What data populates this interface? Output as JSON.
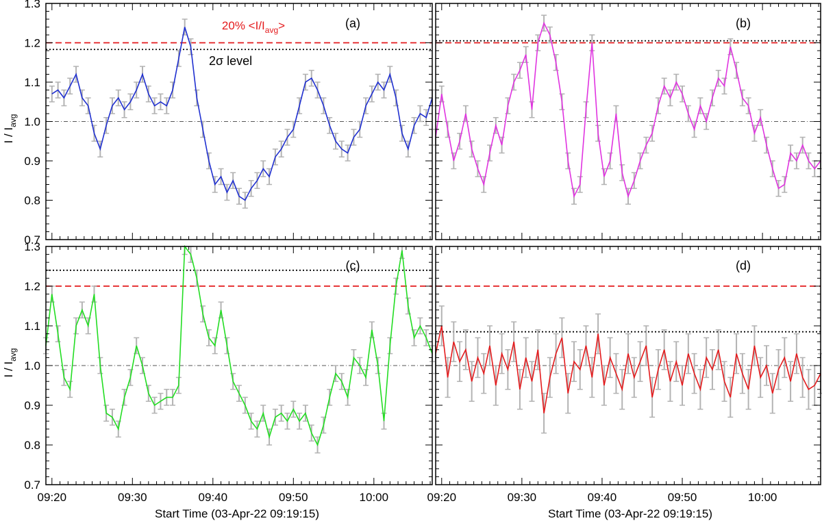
{
  "figure": {
    "shared_xlabel": "Start Time (03-Apr-22 09:19:15)",
    "ylabel_main": "I / I",
    "ylabel_sub": "avg",
    "colors": {
      "axis": "#000000",
      "errorbar": "#b3b3b3",
      "threshold": "#e41a1c",
      "sigma": "#000000",
      "mean": "#555555"
    }
  },
  "chart_data": [
    {
      "type": "line",
      "panel": "(a)",
      "title": "",
      "xlabel": "Start Time (03-Apr-22 09:19:15)",
      "ylabel": "I / Iavg",
      "xlim": [
        0,
        48
      ],
      "ylim": [
        0.7,
        1.3
      ],
      "color": "#1f2fd0",
      "error": 0.02,
      "threshold": 1.2,
      "sigma_level": 1.183,
      "annotations": {
        "threshold_label_prefix": "20% <I/I",
        "threshold_label_sub": "avg",
        "threshold_label_suffix": ">",
        "sigma_label": "2σ level"
      },
      "series": [
        {
          "name": "(a)",
          "x": [
            0.75,
            1.5,
            2.25,
            3,
            3.75,
            4.5,
            5.25,
            6,
            6.75,
            7.5,
            8.25,
            9,
            9.75,
            10.5,
            11.25,
            12,
            12.75,
            13.5,
            14.25,
            15,
            15.75,
            16.5,
            17.25,
            18,
            18.75,
            19.5,
            20.25,
            21,
            21.75,
            22.5,
            23.25,
            24,
            24.75,
            25.5,
            26.25,
            27,
            27.75,
            28.5,
            29.25,
            30,
            30.75,
            31.5,
            32.25,
            33,
            33.75,
            34.5,
            35.25,
            36,
            36.75,
            37.5,
            38.25,
            39,
            39.75,
            40.5,
            41.25,
            42,
            42.75,
            43.5,
            44.25,
            45,
            45.75,
            46.5,
            47.25,
            48
          ],
          "values": [
            1.07,
            1.08,
            1.06,
            1.09,
            1.12,
            1.06,
            1.04,
            0.97,
            0.93,
            0.99,
            1.04,
            1.06,
            1.03,
            1.05,
            1.08,
            1.12,
            1.07,
            1.04,
            1.05,
            1.04,
            1.08,
            1.16,
            1.24,
            1.19,
            1.06,
            0.98,
            0.9,
            0.84,
            0.86,
            0.82,
            0.85,
            0.81,
            0.8,
            0.83,
            0.85,
            0.88,
            0.86,
            0.91,
            0.93,
            0.96,
            0.98,
            1.04,
            1.1,
            1.11,
            1.08,
            1.04,
            0.99,
            0.95,
            0.93,
            0.92,
            0.96,
            0.98,
            1.04,
            1.07,
            1.1,
            1.08,
            1.12,
            1.06,
            0.97,
            0.93,
            0.99,
            1.02,
            1.01,
            1.06
          ]
        }
      ]
    },
    {
      "type": "line",
      "panel": "(b)",
      "title": "",
      "xlabel": "Start Time (03-Apr-22 09:19:15)",
      "ylabel": "I / Iavg",
      "xlim": [
        0,
        48
      ],
      "ylim": [
        0.7,
        1.3
      ],
      "color": "#e033e0",
      "error": 0.02,
      "threshold": 1.2,
      "sigma_level": 1.205,
      "series": [
        {
          "name": "(b)",
          "x": [
            0,
            0.75,
            1.5,
            2.25,
            3,
            3.75,
            4.5,
            5.25,
            6,
            6.75,
            7.5,
            8.25,
            9,
            9.75,
            10.5,
            11.25,
            12,
            12.75,
            13.5,
            14.25,
            15,
            15.75,
            16.5,
            17.25,
            18,
            18.75,
            19.5,
            20.25,
            21,
            21.75,
            22.5,
            23.25,
            24,
            24.75,
            25.5,
            26.25,
            27,
            27.75,
            28.5,
            29.25,
            30,
            30.75,
            31.5,
            32.25,
            33,
            33.75,
            34.5,
            35.25,
            36,
            36.75,
            37.5,
            38.25,
            39,
            39.75,
            40.5,
            41.25,
            42,
            42.75,
            43.5,
            44.25,
            45,
            45.75,
            46.5,
            47.25,
            48
          ],
          "values": [
            0.96,
            1.07,
            0.98,
            0.9,
            0.95,
            1.02,
            0.93,
            0.88,
            0.84,
            0.92,
            0.99,
            0.94,
            1.04,
            1.1,
            1.13,
            1.17,
            1.03,
            1.2,
            1.25,
            1.22,
            1.15,
            1.05,
            0.9,
            0.81,
            0.84,
            1.03,
            1.2,
            0.97,
            0.86,
            0.9,
            1.02,
            0.87,
            0.81,
            0.85,
            0.9,
            0.94,
            0.97,
            1.04,
            1.09,
            1.06,
            1.1,
            1.07,
            1.02,
            0.98,
            1.04,
            1.0,
            1.06,
            1.11,
            1.09,
            1.19,
            1.13,
            1.06,
            1.04,
            0.97,
            1.01,
            0.94,
            0.88,
            0.83,
            0.84,
            0.92,
            0.9,
            0.94,
            0.9,
            0.88,
            0.9
          ]
        }
      ]
    },
    {
      "type": "line",
      "panel": "(c)",
      "title": "",
      "xlabel": "Start Time (03-Apr-22 09:19:15)",
      "ylabel": "I / Iavg",
      "xlim": [
        0,
        48
      ],
      "ylim": [
        0.7,
        1.3
      ],
      "color": "#22dd22",
      "error": 0.02,
      "threshold": 1.2,
      "sigma_level": 1.24,
      "series": [
        {
          "name": "(c)",
          "x": [
            0,
            0.75,
            1.5,
            2.25,
            3,
            3.75,
            4.5,
            5.25,
            6,
            6.75,
            7.5,
            8.25,
            9,
            9.75,
            10.5,
            11.25,
            12,
            12.75,
            13.5,
            14.25,
            15,
            15.75,
            16.5,
            17.25,
            18,
            18.75,
            19.5,
            20.25,
            21,
            21.75,
            22.5,
            23.25,
            24,
            24.75,
            25.5,
            26.25,
            27,
            27.75,
            28.5,
            29.25,
            30,
            30.75,
            31.5,
            32.25,
            33,
            33.75,
            34.5,
            35.25,
            36,
            36.75,
            37.5,
            38.25,
            39,
            39.75,
            40.5,
            41.25,
            42,
            42.75,
            43.5,
            44.25,
            45,
            45.75,
            46.5,
            47.25,
            48
          ],
          "values": [
            1.05,
            1.18,
            1.08,
            0.97,
            0.94,
            1.1,
            1.14,
            1.1,
            1.18,
            1.0,
            0.88,
            0.87,
            0.84,
            0.92,
            0.97,
            1.05,
            1.0,
            0.93,
            0.9,
            0.91,
            0.92,
            0.92,
            0.95,
            1.3,
            1.28,
            1.22,
            1.13,
            1.07,
            1.05,
            1.14,
            1.05,
            0.96,
            0.93,
            0.9,
            0.86,
            0.84,
            0.88,
            0.82,
            0.87,
            0.88,
            0.86,
            0.89,
            0.86,
            0.88,
            0.83,
            0.8,
            0.85,
            0.92,
            0.98,
            0.96,
            0.92,
            1.02,
            1.0,
            0.97,
            1.09,
            1.0,
            0.86,
            1.05,
            1.2,
            1.29,
            1.15,
            1.07,
            1.1,
            1.07,
            1.03
          ]
        }
      ]
    },
    {
      "type": "line",
      "panel": "(d)",
      "title": "",
      "xlabel": "Start Time (03-Apr-22 09:19:15)",
      "ylabel": "I / Iavg",
      "xlim": [
        0,
        48
      ],
      "ylim": [
        0.7,
        1.3
      ],
      "color": "#e41a1c",
      "error": 0.05,
      "threshold": 1.2,
      "sigma_level": 1.085,
      "series": [
        {
          "name": "(d)",
          "x": [
            0,
            0.75,
            1.5,
            2.25,
            3,
            3.75,
            4.5,
            5.25,
            6,
            6.75,
            7.5,
            8.25,
            9,
            9.75,
            10.5,
            11.25,
            12,
            12.75,
            13.5,
            14.25,
            15,
            15.75,
            16.5,
            17.25,
            18,
            18.75,
            19.5,
            20.25,
            21,
            21.75,
            22.5,
            23.25,
            24,
            24.75,
            25.5,
            26.25,
            27,
            27.75,
            28.5,
            29.25,
            30,
            30.75,
            31.5,
            32.25,
            33,
            33.75,
            34.5,
            35.25,
            36,
            36.75,
            37.5,
            38.25,
            39,
            39.75,
            40.5,
            41.25,
            42,
            42.75,
            43.5,
            44.25,
            45,
            45.75,
            46.5,
            47.25,
            48
          ],
          "values": [
            1.03,
            1.1,
            0.97,
            1.06,
            1.01,
            1.04,
            0.96,
            1.02,
            0.98,
            1.05,
            0.95,
            1.03,
            0.99,
            1.06,
            0.94,
            1.02,
            0.96,
            1.04,
            0.88,
            0.97,
            1.03,
            1.07,
            0.93,
            1.01,
            0.99,
            1.05,
            0.97,
            1.08,
            0.95,
            1.02,
            0.98,
            0.94,
            1.03,
            0.97,
            1.01,
            1.05,
            0.92,
            0.99,
            1.04,
            0.96,
            1.01,
            0.95,
            1.03,
            0.98,
            0.94,
            1.02,
            0.99,
            1.04,
            0.96,
            0.92,
            1.03,
            0.98,
            0.94,
            1.05,
            0.97,
            1.0,
            0.93,
            0.99,
            1.02,
            0.96,
            1.03,
            0.97,
            0.94,
            0.95,
            0.98
          ]
        }
      ]
    }
  ],
  "axes": {
    "y_ticks": [
      "0.7",
      "0.8",
      "0.9",
      "1.0",
      "1.1",
      "1.2",
      "1.3"
    ],
    "x_ticks": [
      "09:20",
      "09:30",
      "09:40",
      "09:50",
      "10:00"
    ],
    "x_tick_values": [
      0.75,
      10.75,
      20.75,
      30.75,
      40.75
    ]
  }
}
